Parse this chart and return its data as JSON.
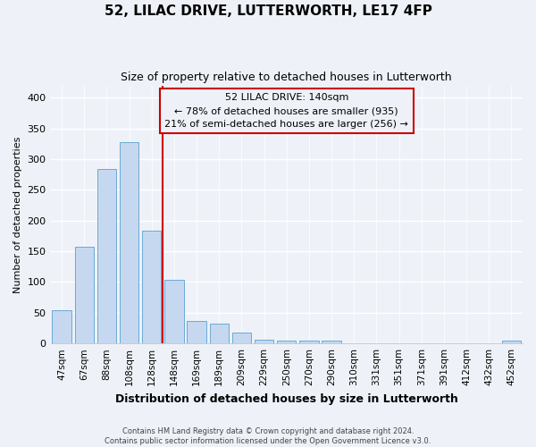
{
  "title": "52, LILAC DRIVE, LUTTERWORTH, LE17 4FP",
  "subtitle": "Size of property relative to detached houses in Lutterworth",
  "xlabel": "Distribution of detached houses by size in Lutterworth",
  "ylabel": "Number of detached properties",
  "bar_labels": [
    "47sqm",
    "67sqm",
    "88sqm",
    "108sqm",
    "128sqm",
    "148sqm",
    "169sqm",
    "189sqm",
    "209sqm",
    "229sqm",
    "250sqm",
    "270sqm",
    "290sqm",
    "310sqm",
    "331sqm",
    "351sqm",
    "371sqm",
    "391sqm",
    "412sqm",
    "432sqm",
    "452sqm"
  ],
  "bar_heights": [
    54,
    157,
    284,
    328,
    184,
    103,
    37,
    32,
    18,
    6,
    5,
    5,
    5,
    0,
    0,
    0,
    0,
    0,
    0,
    0,
    5
  ],
  "bar_color": "#c5d8f0",
  "bar_edge_color": "#6aaad4",
  "vline_color": "#cc0000",
  "ylim": [
    0,
    420
  ],
  "yticks": [
    0,
    50,
    100,
    150,
    200,
    250,
    300,
    350,
    400
  ],
  "annotation_title": "52 LILAC DRIVE: 140sqm",
  "annotation_line2": "← 78% of detached houses are smaller (935)",
  "annotation_line3": "21% of semi-detached houses are larger (256) →",
  "annotation_box_edge": "#cc0000",
  "footer_line1": "Contains HM Land Registry data © Crown copyright and database right 2024.",
  "footer_line2": "Contains public sector information licensed under the Open Government Licence v3.0.",
  "background_color": "#eef2f8",
  "grid_color": "#ffffff",
  "vline_bar_index": 5
}
